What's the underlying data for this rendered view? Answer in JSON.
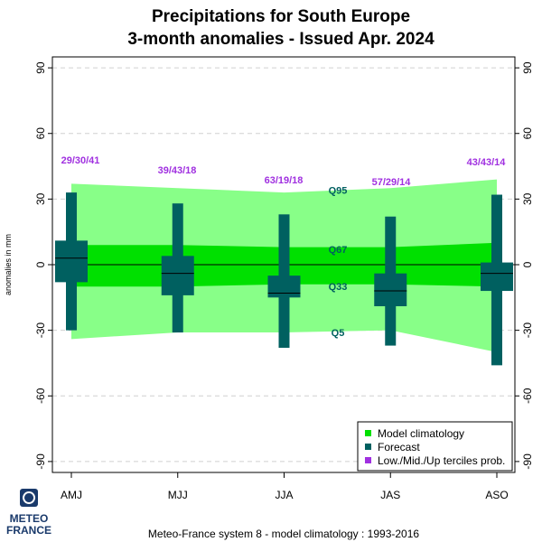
{
  "chart_data": {
    "type": "box",
    "title_lines": [
      "Precipitations  for  South Europe",
      "3-month anomalies    -    Issued Apr. 2024"
    ],
    "ylabel": "anomalies in mm",
    "ylim": [
      -95,
      95
    ],
    "yticks": [
      -90,
      -60,
      -30,
      0,
      30,
      60,
      90
    ],
    "grid": true,
    "categories": [
      "AMJ",
      "MJJ",
      "JJA",
      "JAS",
      "ASO"
    ],
    "model_climatology": {
      "q5": [
        -34,
        -31,
        -31,
        -30,
        -40
      ],
      "q33": [
        -10,
        -10,
        -9,
        -9,
        -10
      ],
      "q67": [
        9,
        9,
        8,
        8,
        10
      ],
      "q95": [
        37,
        35,
        33,
        35,
        39
      ]
    },
    "forecast": {
      "min": [
        -30,
        -31,
        -38,
        -37,
        -46
      ],
      "q25": [
        -8,
        -14,
        -15,
        -19,
        -12
      ],
      "median": [
        3,
        -4,
        -13,
        -12,
        -4
      ],
      "q75": [
        11,
        4,
        -5,
        -4,
        1
      ],
      "max": [
        33,
        28,
        23,
        22,
        32
      ]
    },
    "tercile_labels": [
      "29/30/41",
      "39/43/18",
      "63/19/18",
      "57/29/14",
      "43/43/14"
    ],
    "quantile_labels": [
      "Q95",
      "Q67",
      "Q33",
      "Q5"
    ],
    "legend": {
      "placement": "bottom-right",
      "items": [
        "Model climatology",
        "Forecast",
        "Low./Mid./Up terciles prob."
      ]
    },
    "colors": {
      "outer_band": "#88ff88",
      "inner_band": "#00e000",
      "forecast": "#006060",
      "tercile_text": "#a030e0",
      "quantile_text": "#006060",
      "grid": "#d0d0d0"
    }
  },
  "footer": "Meteo-France system 8  -  model climatology : 1993-2016",
  "logo": {
    "line1": "METEO",
    "line2": "FRANCE"
  }
}
